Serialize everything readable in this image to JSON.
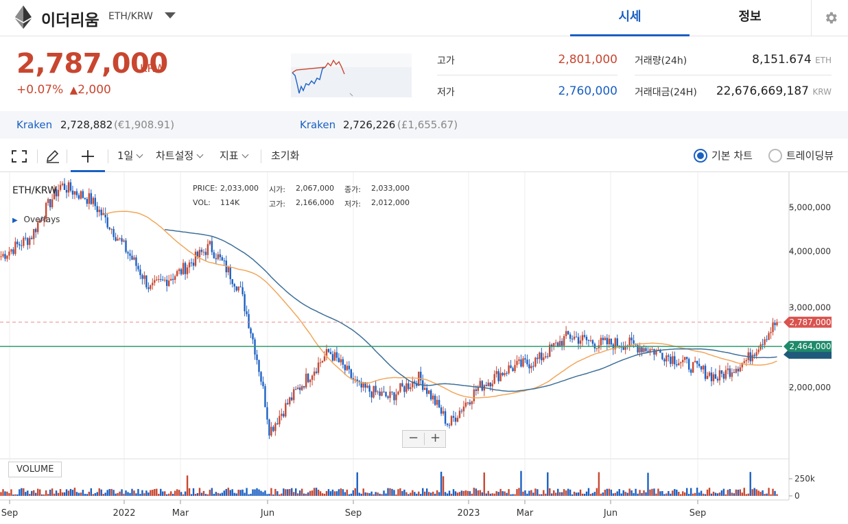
{
  "header": {
    "coin_name": "이더리움",
    "pair": "ETH/KRW",
    "tabs": [
      {
        "label": "시세"
      },
      {
        "label": "정보"
      }
    ]
  },
  "price": {
    "value": "2,787,000",
    "unit": "KRW",
    "change_pct": "+0.07%",
    "change_arrow": "▲",
    "change_abs": "2,000"
  },
  "stats": {
    "high_label": "고가",
    "high_value": "2,801,000",
    "low_label": "저가",
    "low_value": "2,760,000",
    "volume_label": "거래량(24h)",
    "volume_value": "8,151.674",
    "volume_unit": "ETH",
    "amount_label": "거래대금(24H)",
    "amount_value": "22,676,669,187",
    "amount_unit": "KRW"
  },
  "exchanges": [
    {
      "name": "Kraken",
      "value": "2,728,882",
      "sub": "(€1,908.91)"
    },
    {
      "name": "Kraken",
      "value": "2,726,226",
      "sub": "(£1,655.67)"
    }
  ],
  "toolbar": {
    "interval": "1일",
    "chart_settings": "차트설정",
    "indicators": "지표",
    "reset": "초기화",
    "radio_basic": "기본 차트",
    "radio_tradingview": "트레이딩뷰"
  },
  "chart": {
    "symbol": "ETH/KRW",
    "overlays": "Overlays",
    "ohlc": {
      "price_label": "PRICE:",
      "price": "2,033,000",
      "vol_label": "VOL:",
      "vol": "114K",
      "open_label": "시가:",
      "open": "2,067,000",
      "high_label": "고가:",
      "high": "2,166,000",
      "close_label": "종가:",
      "close": "2,033,000",
      "low_label": "저가:",
      "low": "2,012,000"
    },
    "volume_label": "VOLUME",
    "y_ticks": [
      "5,000,000",
      "4,000,000",
      "3,000,000",
      "2,000,000"
    ],
    "vol_ticks": [
      "250k",
      "0"
    ],
    "x_ticks": [
      "Sep",
      "2022",
      "Mar",
      "Jun",
      "Sep",
      "2023",
      "Mar",
      "Jun",
      "Sep"
    ],
    "current_price_tag": "2,787,000",
    "line_tag": "2,464,000",
    "colors": {
      "up": "#c8462f",
      "down": "#1a5fc2",
      "ma_orange": "#f2a65a",
      "ma_blue": "#3d6f98",
      "hline_green": "#2e9b6b"
    }
  },
  "chart_data": {
    "type": "line",
    "ylim": [
      1400000,
      5900000
    ],
    "x": [
      "2021-09",
      "2021-10",
      "2021-11",
      "2021-12",
      "2022-01",
      "2022-02",
      "2022-03",
      "2022-04",
      "2022-05",
      "2022-06",
      "2022-07",
      "2022-08",
      "2022-09",
      "2022-10",
      "2022-11",
      "2022-12",
      "2023-01",
      "2023-02",
      "2023-03",
      "2023-04",
      "2023-05",
      "2023-06",
      "2023-07",
      "2023-08",
      "2023-09",
      "2023-10",
      "2023-11"
    ],
    "series": [
      {
        "values": [
          3900000,
          4300000,
          5600000,
          5200000,
          4200000,
          3300000,
          3600000,
          4100000,
          3300000,
          1600000,
          2000000,
          2400000,
          2000000,
          1900000,
          2100000,
          1650000,
          2000000,
          2200000,
          2300000,
          2600000,
          2500000,
          2500000,
          2400000,
          2250000,
          2100000,
          2300000,
          2787000
        ]
      }
    ]
  }
}
